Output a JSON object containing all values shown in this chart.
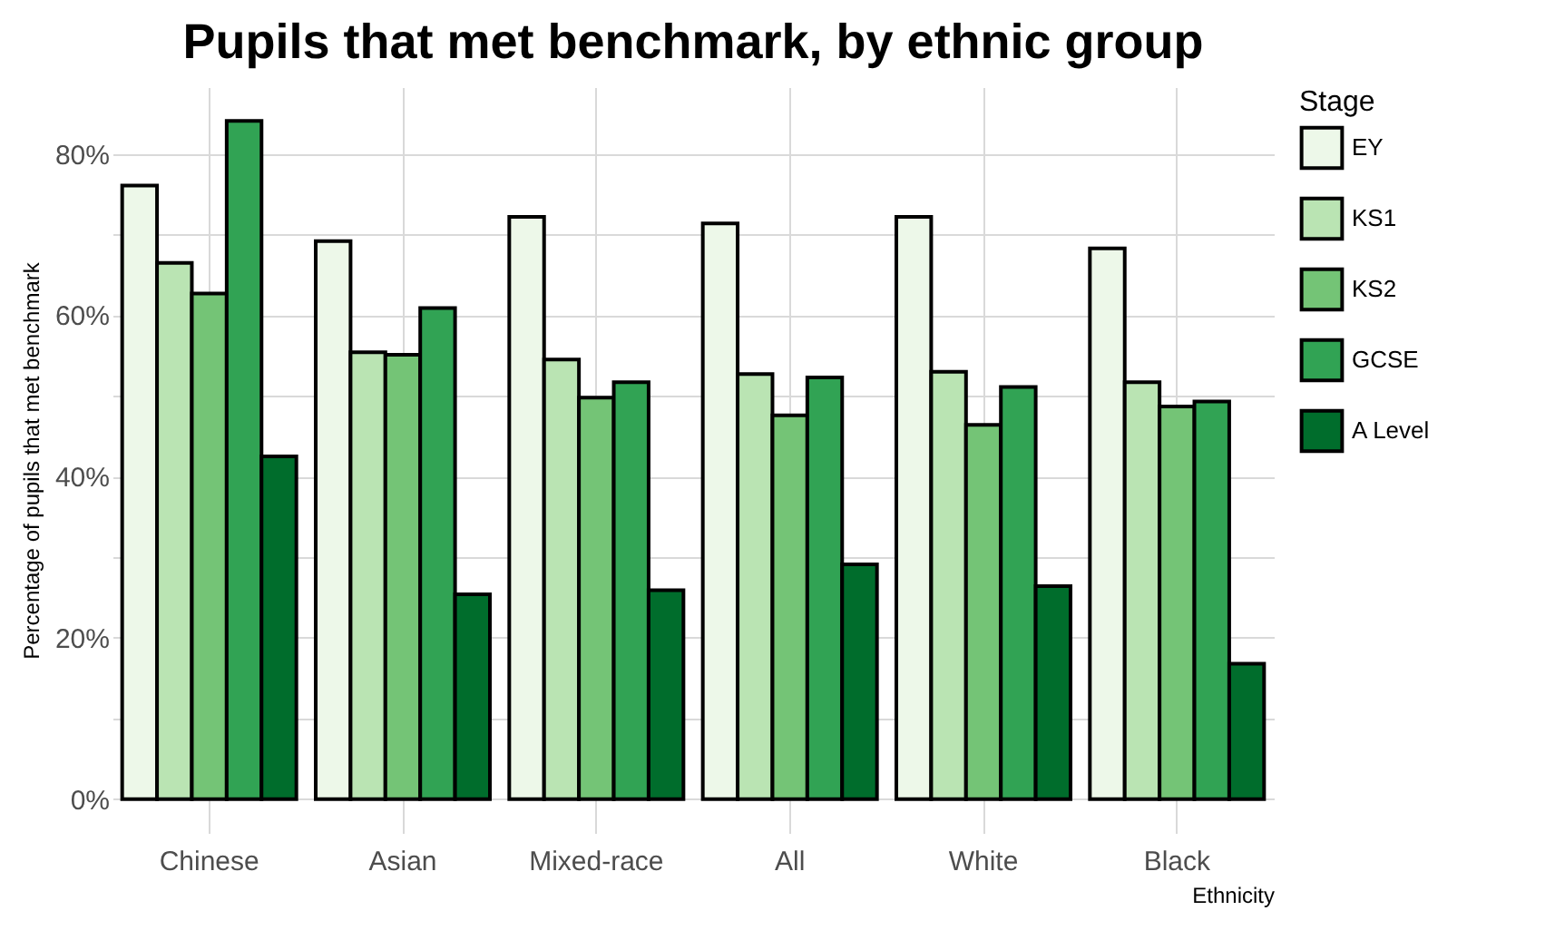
{
  "chart_data": {
    "type": "bar",
    "title": "Pupils that met benchmark, by ethnic group",
    "xlabel": "Ethnicity",
    "ylabel": "Percentage of pupils that met benchmark",
    "legend_title": "Stage",
    "categories": [
      "Chinese",
      "Asian",
      "Mixed-race",
      "All",
      "White",
      "Black"
    ],
    "series": [
      {
        "name": "EY",
        "color": "#edf8e9",
        "values": [
          76.1,
          69.2,
          72.2,
          71.4,
          72.2,
          68.3
        ]
      },
      {
        "name": "KS1",
        "color": "#bae4b3",
        "values": [
          66.5,
          55.4,
          54.5,
          52.7,
          53.0,
          51.7
        ]
      },
      {
        "name": "KS2",
        "color": "#74c476",
        "values": [
          62.7,
          55.1,
          49.8,
          47.6,
          46.4,
          48.7
        ]
      },
      {
        "name": "GCSE",
        "color": "#31a354",
        "values": [
          84.1,
          60.9,
          51.7,
          52.3,
          51.1,
          49.3
        ]
      },
      {
        "name": "A Level",
        "color": "#006d2c",
        "values": [
          42.5,
          25.4,
          25.9,
          29.1,
          26.4,
          16.8
        ]
      }
    ],
    "ylim": [
      -4.2,
      88.3
    ],
    "yticks": [
      {
        "value": 0,
        "label": "0%"
      },
      {
        "value": 10,
        "label": null
      },
      {
        "value": 20,
        "label": "20%"
      },
      {
        "value": 30,
        "label": null
      },
      {
        "value": 40,
        "label": "40%"
      },
      {
        "value": 50,
        "label": null
      },
      {
        "value": 60,
        "label": "60%"
      },
      {
        "value": 70,
        "label": null
      },
      {
        "value": 80,
        "label": "80%"
      }
    ],
    "grid": true,
    "legend": "right"
  }
}
